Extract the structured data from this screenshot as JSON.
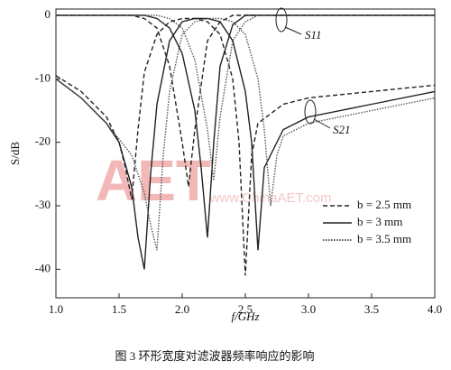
{
  "chart_data": {
    "type": "line",
    "caption": "图 3   环形宽度对滤波器频率响应的影响",
    "x_label": "f/GHz",
    "y_label": "S/dB",
    "xlim": [
      1.0,
      4.0
    ],
    "ylim": [
      -44.5,
      1
    ],
    "xticks": [
      {
        "value": 1.0,
        "label": "1.0"
      },
      {
        "value": 1.5,
        "label": "1.5"
      },
      {
        "value": 2.0,
        "label": "2.0"
      },
      {
        "value": 2.5,
        "label": "2.5"
      },
      {
        "value": 3.0,
        "label": "3.0"
      },
      {
        "value": 3.5,
        "label": "3.5"
      },
      {
        "value": 4.0,
        "label": "4.0"
      }
    ],
    "yticks": [
      0,
      -10,
      -20,
      -30,
      -40
    ],
    "annotations": [
      "S11",
      "S21"
    ],
    "watermark": [
      "AET",
      "www.ChinaAET.com"
    ],
    "legend": [
      {
        "label": "b = 2.5 mm",
        "dash": "dashed"
      },
      {
        "label": "b = 3 mm",
        "dash": "solid"
      },
      {
        "label": "b = 3.5 mm",
        "dash": "dotted"
      }
    ],
    "series": [
      {
        "dash": "dashed",
        "color": "#222",
        "x": [
          1.0,
          1.2,
          1.4,
          1.5,
          1.55,
          1.6,
          1.65,
          1.7,
          1.8,
          1.9,
          2.0,
          2.1,
          2.2,
          2.3,
          2.4,
          2.45,
          2.5,
          2.55,
          2.6,
          2.8,
          3.0,
          3.5,
          4.0
        ],
        "values": [
          -9.5,
          -12,
          -16,
          -20,
          -24,
          -29,
          -18,
          -9,
          -3,
          -1,
          -0.5,
          -0.5,
          -1,
          -3,
          -10,
          -20,
          -41,
          -22,
          -17,
          -14,
          -13,
          -12,
          -11
        ]
      },
      {
        "dash": "solid",
        "color": "#222",
        "x": [
          1.0,
          1.2,
          1.4,
          1.5,
          1.6,
          1.65,
          1.7,
          1.75,
          1.8,
          1.9,
          2.0,
          2.1,
          2.2,
          2.3,
          2.4,
          2.5,
          2.55,
          2.6,
          2.65,
          2.8,
          3.0,
          3.5,
          4.0
        ],
        "values": [
          -10,
          -13,
          -17,
          -20,
          -27,
          -35,
          -40,
          -25,
          -14,
          -4,
          -1,
          -0.5,
          -0.5,
          -1,
          -4,
          -12,
          -20,
          -37,
          -24,
          -18,
          -16,
          -14,
          -12
        ]
      },
      {
        "dash": "dotted",
        "color": "#555",
        "x": [
          1.0,
          1.2,
          1.4,
          1.6,
          1.7,
          1.75,
          1.8,
          1.85,
          1.9,
          2.0,
          2.1,
          2.2,
          2.3,
          2.4,
          2.5,
          2.6,
          2.65,
          2.7,
          2.75,
          2.8,
          3.0,
          3.5,
          4.0
        ],
        "values": [
          -10,
          -13,
          -17,
          -22,
          -28,
          -33,
          -37,
          -22,
          -12,
          -3,
          -1,
          -0.5,
          -0.5,
          -1,
          -3,
          -10,
          -18,
          -30,
          -22,
          -19,
          -17,
          -15,
          -13
        ]
      },
      {
        "dash": "dashed",
        "color": "#222",
        "x": [
          1.0,
          1.6,
          1.7,
          1.8,
          1.9,
          2.0,
          2.05,
          2.1,
          2.2,
          2.3,
          2.4,
          4.0
        ],
        "values": [
          0,
          0,
          -0.5,
          -2,
          -8,
          -20,
          -27,
          -18,
          -4,
          -1,
          0,
          0
        ]
      },
      {
        "dash": "solid",
        "color": "#222",
        "x": [
          1.0,
          1.7,
          1.8,
          1.9,
          2.0,
          2.1,
          2.15,
          2.2,
          2.25,
          2.3,
          2.4,
          2.5,
          4.0
        ],
        "values": [
          0,
          0,
          -0.5,
          -2,
          -6,
          -15,
          -24,
          -35,
          -20,
          -8,
          -1.5,
          0,
          0
        ]
      },
      {
        "dash": "dotted",
        "color": "#555",
        "x": [
          1.0,
          1.8,
          1.9,
          2.0,
          2.1,
          2.2,
          2.25,
          2.3,
          2.4,
          2.5,
          2.6,
          4.0
        ],
        "values": [
          0,
          0,
          -0.5,
          -2,
          -7,
          -18,
          -26,
          -16,
          -4,
          -1,
          0,
          0
        ]
      }
    ]
  }
}
